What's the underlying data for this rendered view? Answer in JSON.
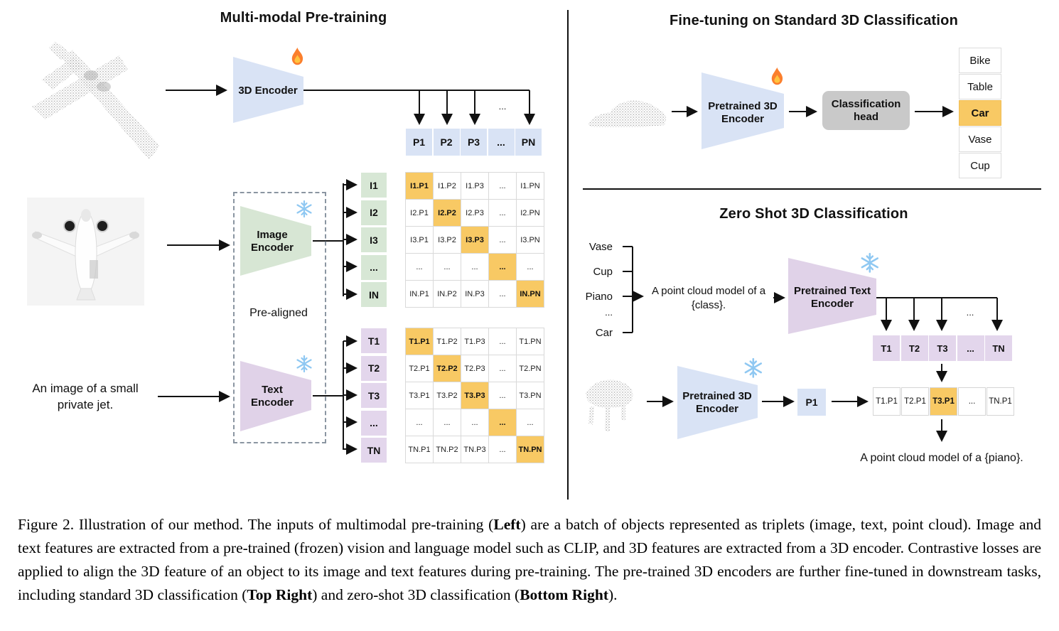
{
  "figure": {
    "left": {
      "title": "Multi-modal Pre-training",
      "encoder_3d_label": "3D Encoder",
      "p_row": [
        "P1",
        "P2",
        "P3",
        "...",
        "PN"
      ],
      "p_row_ellipsis": "...",
      "image_encoder_label": "Image Encoder",
      "text_encoder_label": "Text Encoder",
      "prealigned_label": "Pre-aligned",
      "image_caption": "An image of a small private jet.",
      "i_labels": [
        "I1",
        "I2",
        "I3",
        "...",
        "IN"
      ],
      "t_labels": [
        "T1",
        "T2",
        "T3",
        "...",
        "TN"
      ],
      "i_matrix": [
        [
          "I1.P1",
          "I1.P2",
          "I1.P3",
          "...",
          "I1.PN"
        ],
        [
          "I2.P1",
          "I2.P2",
          "I2.P3",
          "...",
          "I2.PN"
        ],
        [
          "I3.P1",
          "I3.P2",
          "I3.P3",
          "...",
          "I3.PN"
        ],
        [
          "...",
          "...",
          "...",
          "...",
          "..."
        ],
        [
          "IN.P1",
          "IN.P2",
          "IN.P3",
          "...",
          "IN.PN"
        ]
      ],
      "t_matrix": [
        [
          "T1.P1",
          "T1.P2",
          "T1.P3",
          "...",
          "T1.PN"
        ],
        [
          "T2.P1",
          "T2.P2",
          "T2.P3",
          "...",
          "T2.PN"
        ],
        [
          "T3.P1",
          "T3.P2",
          "T3.P3",
          "...",
          "T3.PN"
        ],
        [
          "...",
          "...",
          "...",
          "...",
          "..."
        ],
        [
          "TN.P1",
          "TN.P2",
          "TN.P3",
          "...",
          "TN.PN"
        ]
      ]
    },
    "right_top": {
      "title": "Fine-tuning on Standard 3D Classification",
      "encoder_label": "Pretrained 3D Encoder",
      "head_label": "Classification head",
      "classes": [
        "Bike",
        "Table",
        "Car",
        "Vase",
        "Cup"
      ],
      "predicted_class": "Car"
    },
    "right_bottom": {
      "title": "Zero Shot 3D Classification",
      "class_list": [
        "Vase",
        "Cup",
        "Piano",
        "...",
        "Car"
      ],
      "prompt": "A point cloud model of a {class}.",
      "text_encoder_label": "Pretrained Text Encoder",
      "t_row": [
        "T1",
        "T2",
        "T3",
        "...",
        "TN"
      ],
      "t_row_ellipsis": "...",
      "encoder_label": "Pretrained 3D Encoder",
      "p_cell": "P1",
      "score_row": [
        "T1.P1",
        "T2.P1",
        "T3.P1",
        "...",
        "TN.P1"
      ],
      "predicted_score": "T3.P1",
      "result_text": "A point cloud model of a {piano}."
    },
    "icons": [
      "flame-icon",
      "snowflake-icon"
    ],
    "colors": {
      "accent_orange": "#F8C964",
      "cell_blue": "#D9E3F5",
      "cell_green": "#D7E7D5",
      "cell_purple": "#E3D6EC",
      "head_gray": "#C9C9C9",
      "pointcloud_gray": "#AFAFAF"
    },
    "caption": {
      "segments": [
        {
          "t": "Figure 2. Illustration of our method. The inputs of multimodal pre-training (",
          "b": 0
        },
        {
          "t": "Left",
          "b": 1
        },
        {
          "t": ") are a batch of objects represented as triplets (image, text, point cloud). Image and text features are extracted from a pre-trained (frozen) vision and language model such as CLIP, and 3D features are extracted from a 3D encoder. Contrastive losses are applied to align the 3D feature of an object to its image and text features during pre-training. The pre-trained 3D encoders are further fine-tuned in downstream tasks, including standard 3D classification (",
          "b": 0
        },
        {
          "t": "Top Right",
          "b": 1
        },
        {
          "t": ") and zero-shot 3D classification (",
          "b": 0
        },
        {
          "t": "Bottom Right",
          "b": 1
        },
        {
          "t": ").",
          "b": 0
        }
      ]
    }
  }
}
